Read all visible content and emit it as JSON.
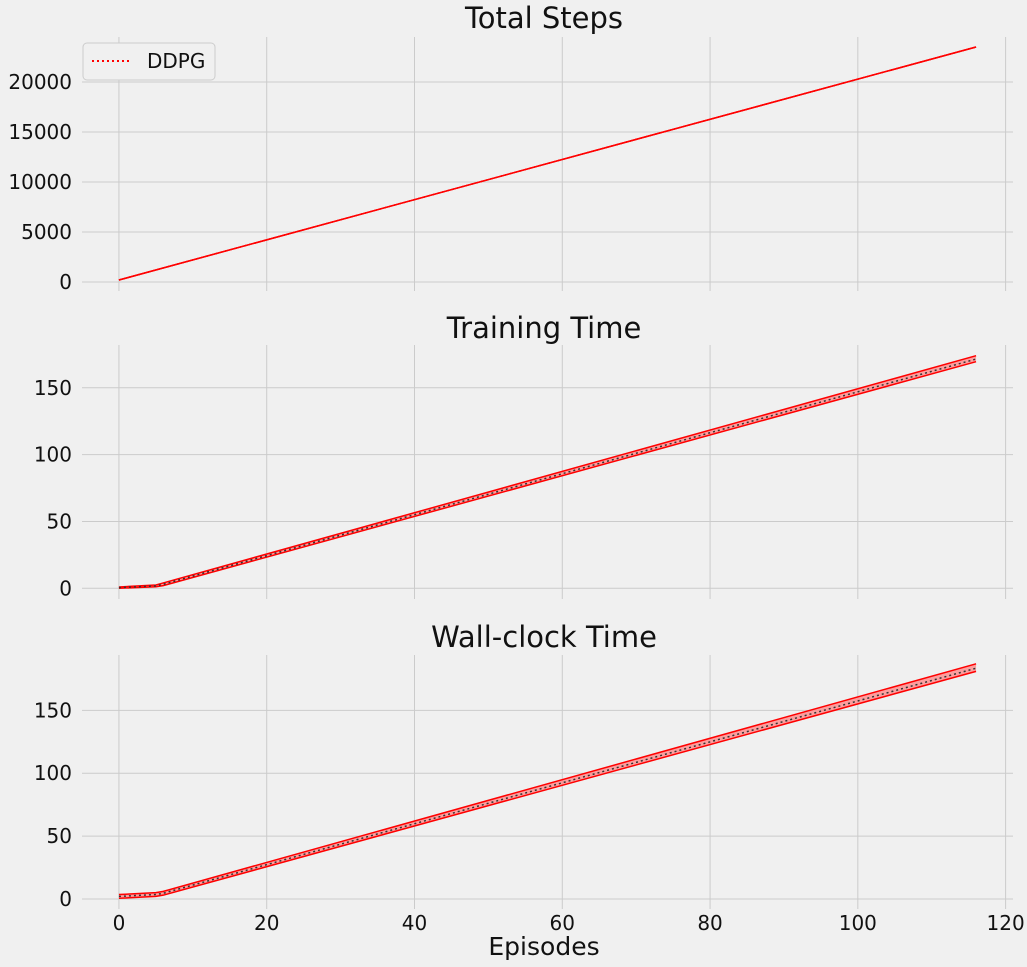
{
  "colors": {
    "background": "#f0f0f0",
    "grid": "#cbcbcb",
    "series": "#ff0000",
    "band_fill": "#ff8a8a",
    "mean_line": "#333333"
  },
  "legend": {
    "label": "DDPG",
    "placement": "upper-left"
  },
  "xlabel": "Episodes",
  "chart_data": [
    {
      "type": "line",
      "title": "Total Steps",
      "xlim": [
        -5,
        121
      ],
      "ylim": [
        -900,
        24500
      ],
      "xticks": [
        0,
        20,
        40,
        60,
        80,
        100,
        120
      ],
      "yticks": [
        0,
        5000,
        10000,
        15000,
        20000
      ],
      "series": [
        {
          "name": "DDPG",
          "x": [
            0,
            116
          ],
          "mean": [
            200,
            23500
          ],
          "lower": [
            200,
            23500
          ],
          "upper": [
            200,
            23500
          ]
        }
      ]
    },
    {
      "type": "line",
      "title": "Training Time",
      "xlim": [
        -5,
        121
      ],
      "ylim": [
        -8,
        182
      ],
      "xticks": [
        0,
        20,
        40,
        60,
        80,
        100,
        120
      ],
      "yticks": [
        0,
        50,
        100,
        150
      ],
      "series": [
        {
          "name": "DDPG",
          "x": [
            0,
            5,
            6,
            116
          ],
          "mean": [
            0.5,
            1.8,
            3,
            171.5
          ],
          "lower": [
            0,
            1.2,
            2,
            169.5
          ],
          "upper": [
            1,
            2.5,
            4,
            174
          ]
        }
      ]
    },
    {
      "type": "line",
      "title": "Wall-clock Time",
      "xlim": [
        -5,
        121
      ],
      "ylim": [
        -8,
        194
      ],
      "xticks": [
        0,
        20,
        40,
        60,
        80,
        100,
        120
      ],
      "yticks": [
        0,
        50,
        100,
        150
      ],
      "series": [
        {
          "name": "DDPG",
          "x": [
            0,
            5,
            6,
            116
          ],
          "mean": [
            2,
            3.5,
            4.5,
            183.5
          ],
          "lower": [
            0.5,
            2,
            3,
            181
          ],
          "upper": [
            3.5,
            5,
            6,
            187
          ]
        }
      ]
    }
  ]
}
